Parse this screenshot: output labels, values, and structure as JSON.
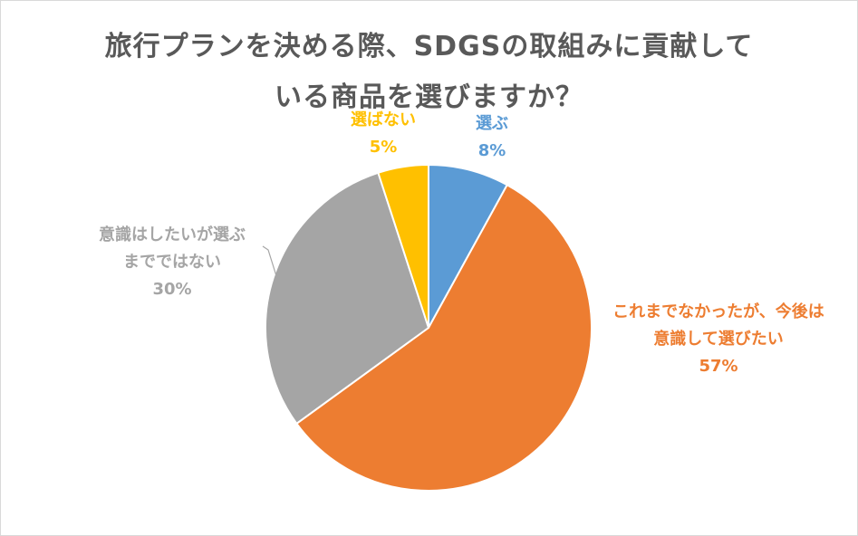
{
  "chart_data": {
    "type": "pie",
    "title_lines": [
      "旅行プランを決める際、SDGSの取組みに貢献して",
      "いる商品を選びますか？"
    ],
    "slices": [
      {
        "label_lines": [
          "選ぶ"
        ],
        "pct_label": "8%",
        "value": 8,
        "color": "#5b9bd5"
      },
      {
        "label_lines": [
          "これまでなかったが、今後は",
          "意識して選びたい"
        ],
        "pct_label": "57%",
        "value": 57,
        "color": "#ed7d31"
      },
      {
        "label_lines": [
          "意識はしたいが選ぶ",
          "までではない"
        ],
        "pct_label": "30%",
        "value": 30,
        "color": "#a5a5a5"
      },
      {
        "label_lines": [
          "選ばない"
        ],
        "pct_label": "5%",
        "value": 5,
        "color": "#ffc000"
      }
    ]
  }
}
